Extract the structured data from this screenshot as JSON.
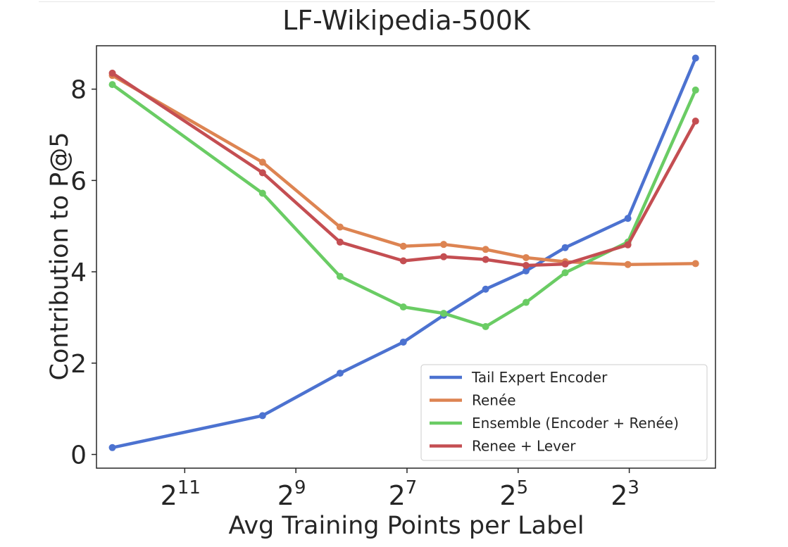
{
  "chart_data": {
    "type": "line",
    "title": "LF-Wikipedia-500K",
    "xlabel": "Avg Training Points per Label",
    "ylabel": "Contribution to P@5",
    "x_scale": "log2",
    "x_ticks": [
      {
        "value": 2048,
        "base": "2",
        "exp": "11"
      },
      {
        "value": 512,
        "base": "2",
        "exp": "9"
      },
      {
        "value": 128,
        "base": "2",
        "exp": "7"
      },
      {
        "value": 32,
        "base": "2",
        "exp": "5"
      },
      {
        "value": 8,
        "base": "2",
        "exp": "3"
      }
    ],
    "x_inverted": true,
    "xlim": [
      6158,
      2.73
    ],
    "y_ticks": [
      0,
      2,
      4,
      6,
      8
    ],
    "ylim": [
      -0.3,
      8.95
    ],
    "grid": false,
    "legend_position": "lower-right",
    "x": [
      5052,
      776,
      295,
      134,
      81,
      48,
      29,
      17.8,
      8.14,
      3.5
    ],
    "series": [
      {
        "name": "Tail Expert Encoder",
        "color": "#4c72d0",
        "values": [
          0.15,
          0.85,
          1.78,
          2.46,
          3.05,
          3.62,
          4.02,
          4.53,
          5.17,
          8.68
        ]
      },
      {
        "name": "Renée",
        "color": "#dd8452",
        "values": [
          8.3,
          6.4,
          4.98,
          4.56,
          4.6,
          4.49,
          4.31,
          4.22,
          4.16,
          4.18
        ]
      },
      {
        "name": "Ensemble (Encoder + Renée)",
        "color": "#6acc64",
        "values": [
          8.1,
          5.72,
          3.9,
          3.23,
          3.09,
          2.8,
          3.33,
          3.98,
          4.65,
          7.98
        ]
      },
      {
        "name": "Renee + Lever",
        "color": "#c44e52",
        "values": [
          8.35,
          6.17,
          4.65,
          4.24,
          4.33,
          4.27,
          4.14,
          4.17,
          4.59,
          7.3
        ]
      }
    ]
  }
}
